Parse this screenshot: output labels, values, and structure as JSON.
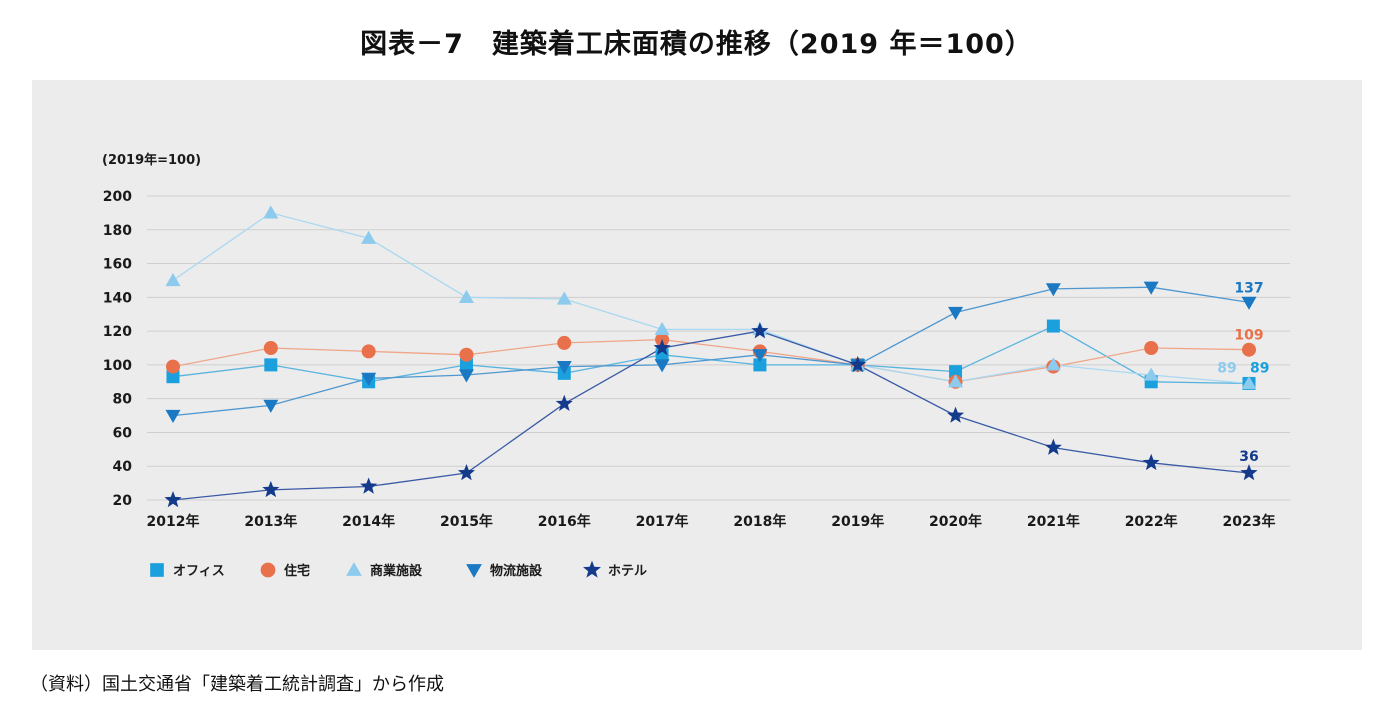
{
  "title": "図表－7　建築着工床面積の推移（2019 年＝100）",
  "source": "（資料）国土交通省「建築着工統計調査」から作成",
  "chart_data": {
    "type": "line",
    "unit_label": "(2019年=100)",
    "categories": [
      "2012年",
      "2013年",
      "2014年",
      "2015年",
      "2016年",
      "2017年",
      "2018年",
      "2019年",
      "2020年",
      "2021年",
      "2022年",
      "2023年"
    ],
    "y_ticks": [
      20,
      40,
      60,
      80,
      100,
      120,
      140,
      160,
      180,
      200
    ],
    "ylim": [
      20,
      200
    ],
    "grid": true,
    "legend_position": "bottom-left",
    "series": [
      {
        "name": "オフィス",
        "marker": "square",
        "color": "#1aa0dc",
        "line_color": "#5ab4df",
        "values": [
          93,
          100,
          90,
          100,
          95,
          106,
          100,
          100,
          96,
          123,
          90,
          89
        ]
      },
      {
        "name": "住宅",
        "marker": "circle",
        "color": "#e8704a",
        "line_color": "#f0a588",
        "values": [
          99,
          110,
          108,
          106,
          113,
          115,
          108,
          100,
          90,
          99,
          110,
          109
        ]
      },
      {
        "name": "商業施設",
        "marker": "triangle-up",
        "color": "#8ccbee",
        "line_color": "#a9d8f2",
        "values": [
          150,
          190,
          175,
          140,
          139,
          121,
          121,
          100,
          90,
          100,
          94,
          89
        ]
      },
      {
        "name": "物流施設",
        "marker": "triangle-down",
        "color": "#1b78c2",
        "line_color": "#4f97cf",
        "values": [
          70,
          76,
          92,
          94,
          99,
          100,
          106,
          100,
          131,
          145,
          146,
          137
        ]
      },
      {
        "name": "ホテル",
        "marker": "star",
        "color": "#143a8c",
        "line_color": "#3a5aa6",
        "values": [
          20,
          26,
          28,
          36,
          77,
          110,
          120,
          100,
          70,
          51,
          42,
          36
        ]
      }
    ],
    "data_labels": [
      {
        "text": "137",
        "color": "#1b78c2"
      },
      {
        "text": "109",
        "color": "#e8704a"
      },
      {
        "text": "89",
        "color": "#8ccbee"
      },
      {
        "text": "89",
        "color": "#1aa0dc"
      },
      {
        "text": "36",
        "color": "#143a8c"
      }
    ]
  }
}
